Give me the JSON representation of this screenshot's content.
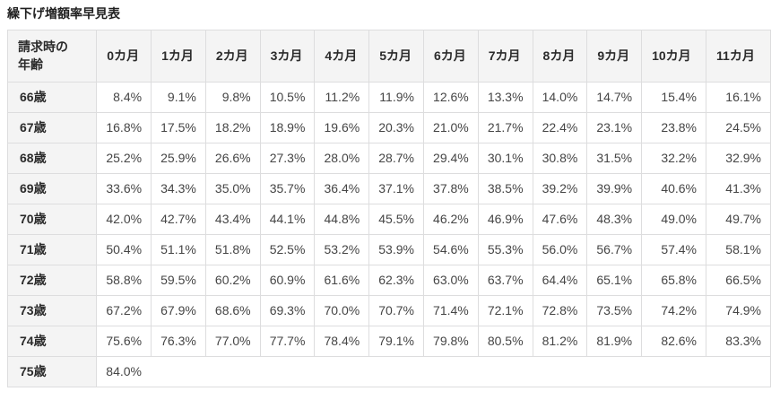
{
  "page": {
    "title": "繰下げ増額率早見表"
  },
  "table": {
    "corner": {
      "line1": "請求時の",
      "line2": "年齢"
    },
    "month_headers": [
      "0カ月",
      "1カ月",
      "2カ月",
      "3カ月",
      "4カ月",
      "5カ月",
      "6カ月",
      "7カ月",
      "8カ月",
      "9カ月",
      "10カ月",
      "11カ月"
    ],
    "rows": [
      {
        "age": "66歳",
        "values": [
          "8.4%",
          "9.1%",
          "9.8%",
          "10.5%",
          "11.2%",
          "11.9%",
          "12.6%",
          "13.3%",
          "14.0%",
          "14.7%",
          "15.4%",
          "16.1%"
        ]
      },
      {
        "age": "67歳",
        "values": [
          "16.8%",
          "17.5%",
          "18.2%",
          "18.9%",
          "19.6%",
          "20.3%",
          "21.0%",
          "21.7%",
          "22.4%",
          "23.1%",
          "23.8%",
          "24.5%"
        ]
      },
      {
        "age": "68歳",
        "values": [
          "25.2%",
          "25.9%",
          "26.6%",
          "27.3%",
          "28.0%",
          "28.7%",
          "29.4%",
          "30.1%",
          "30.8%",
          "31.5%",
          "32.2%",
          "32.9%"
        ]
      },
      {
        "age": "69歳",
        "values": [
          "33.6%",
          "34.3%",
          "35.0%",
          "35.7%",
          "36.4%",
          "37.1%",
          "37.8%",
          "38.5%",
          "39.2%",
          "39.9%",
          "40.6%",
          "41.3%"
        ]
      },
      {
        "age": "70歳",
        "values": [
          "42.0%",
          "42.7%",
          "43.4%",
          "44.1%",
          "44.8%",
          "45.5%",
          "46.2%",
          "46.9%",
          "47.6%",
          "48.3%",
          "49.0%",
          "49.7%"
        ]
      },
      {
        "age": "71歳",
        "values": [
          "50.4%",
          "51.1%",
          "51.8%",
          "52.5%",
          "53.2%",
          "53.9%",
          "54.6%",
          "55.3%",
          "56.0%",
          "56.7%",
          "57.4%",
          "58.1%"
        ]
      },
      {
        "age": "72歳",
        "values": [
          "58.8%",
          "59.5%",
          "60.2%",
          "60.9%",
          "61.6%",
          "62.3%",
          "63.0%",
          "63.7%",
          "64.4%",
          "65.1%",
          "65.8%",
          "66.5%"
        ]
      },
      {
        "age": "73歳",
        "values": [
          "67.2%",
          "67.9%",
          "68.6%",
          "69.3%",
          "70.0%",
          "70.7%",
          "71.4%",
          "72.1%",
          "72.8%",
          "73.5%",
          "74.2%",
          "74.9%"
        ]
      },
      {
        "age": "74歳",
        "values": [
          "75.6%",
          "76.3%",
          "77.0%",
          "77.7%",
          "78.4%",
          "79.1%",
          "79.8%",
          "80.5%",
          "81.2%",
          "81.9%",
          "82.6%",
          "83.3%"
        ]
      },
      {
        "age": "75歳",
        "values": [
          "84.0%"
        ]
      }
    ]
  }
}
